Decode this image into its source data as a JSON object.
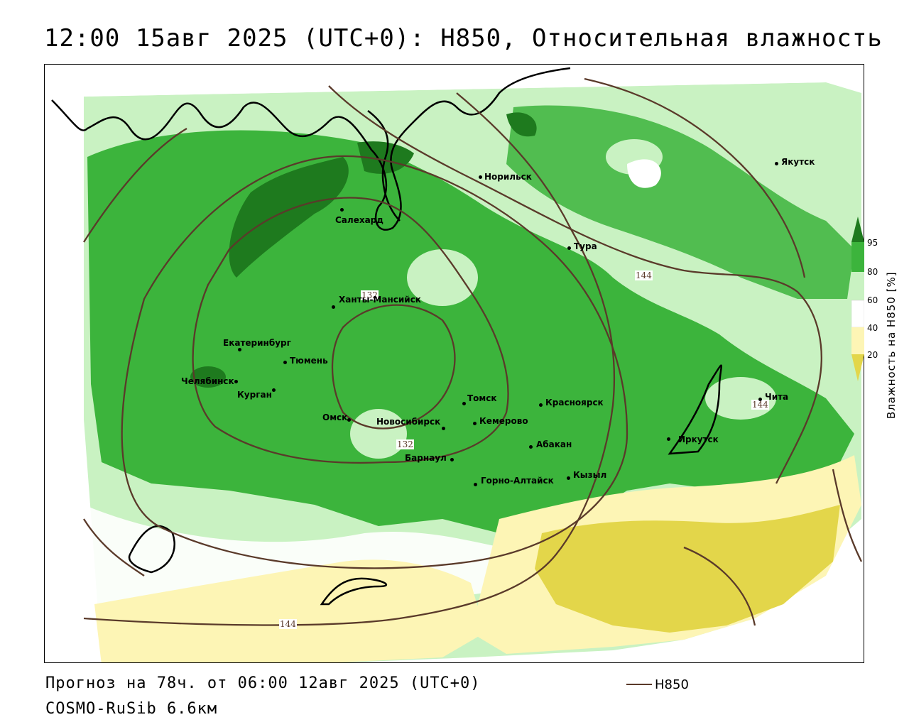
{
  "header": {
    "title": "12:00 15авг 2025 (UTC+0): H850, Относительная влажность"
  },
  "footer": {
    "forecast": "Прогноз на 78ч. от 06:00 12авг 2025 (UTC+0)",
    "model": "COSMO-RuSib 6.6км",
    "legend_label": "H850",
    "legend_color": "#5a3a2a"
  },
  "colorbar": {
    "title": "Влажность на H850 [%]",
    "ticks": [
      "95",
      "80",
      "60",
      "40",
      "20"
    ],
    "colors": {
      "c95": "#1e7a1e",
      "c80": "#3cb43c",
      "c60": "#c9f2c2",
      "c40": "#ffffff",
      "c20": "#fdf5b5",
      "c0": "#e3d64a"
    }
  },
  "cities": [
    {
      "name": "Норильск",
      "id": "norilsk"
    },
    {
      "name": "Якутск",
      "id": "yakutsk"
    },
    {
      "name": "Салехард",
      "id": "salekhard"
    },
    {
      "name": "Тура",
      "id": "tura"
    },
    {
      "name": "Ханты-Мансийск",
      "id": "khanty"
    },
    {
      "name": "Екатеринбург",
      "id": "ekb"
    },
    {
      "name": "Тюмень",
      "id": "tyumen"
    },
    {
      "name": "Челябинск",
      "id": "chelyabinsk"
    },
    {
      "name": "Курган",
      "id": "kurgan"
    },
    {
      "name": "Омск",
      "id": "omsk"
    },
    {
      "name": "Новосибирск",
      "id": "novosibirsk"
    },
    {
      "name": "Томск",
      "id": "tomsk"
    },
    {
      "name": "Кемерово",
      "id": "kemerovo"
    },
    {
      "name": "Красноярск",
      "id": "krasnoyarsk"
    },
    {
      "name": "Абакан",
      "id": "abakan"
    },
    {
      "name": "Барнаул",
      "id": "barnaul"
    },
    {
      "name": "Горно-Алтайск",
      "id": "gorno"
    },
    {
      "name": "Кызыл",
      "id": "kyzyl"
    },
    {
      "name": "Иркутск",
      "id": "irkutsk"
    },
    {
      "name": "Чита",
      "id": "chita"
    }
  ],
  "contour_labels": [
    "132",
    "132",
    "144",
    "144",
    "144"
  ]
}
